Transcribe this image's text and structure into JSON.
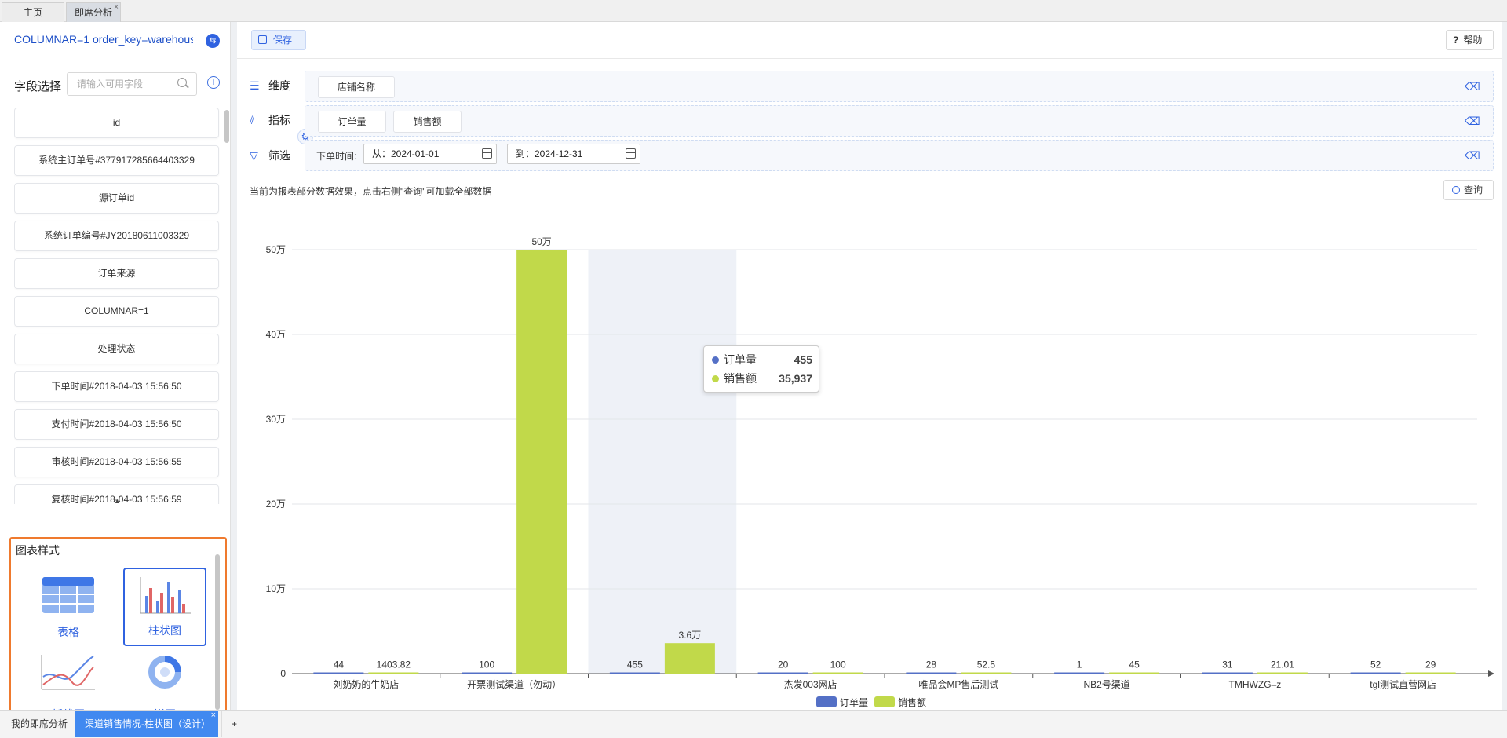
{
  "top_tabs": [
    {
      "label": "主页"
    },
    {
      "label": "即席分析",
      "close": "×"
    }
  ],
  "left": {
    "connection": "COLUMNAR=1 order_key=warehous",
    "switch_icon": "swap-icon",
    "field_select_label": "字段选择",
    "search_placeholder": "请输入可用字段",
    "fields": [
      "id",
      "系统主订单号#377917285664403329",
      "源订单id",
      "系统订单编号#JY20180611003329",
      "订单来源",
      "COLUMNAR=1",
      "处理状态",
      "下单时间#2018-04-03 15:56:50",
      "支付时间#2018-04-03 15:56:50",
      "审核时间#2018-04-03 15:56:55",
      "复核时间#2018-04-03 15:56:59"
    ],
    "chart_style": {
      "title": "图表样式",
      "items": [
        {
          "label": "表格",
          "icon": "table-icon"
        },
        {
          "label": "柱状图",
          "icon": "bar-chart-icon",
          "selected": true
        },
        {
          "label": "折线图",
          "icon": "line-chart-icon"
        },
        {
          "label": "饼图",
          "icon": "pie-chart-icon"
        }
      ]
    }
  },
  "toolbar": {
    "save": "保存",
    "help": "帮助"
  },
  "dimension": {
    "label": "维度",
    "chips": [
      "店铺名称"
    ]
  },
  "metric": {
    "label": "指标",
    "chips": [
      "订单量",
      "销售额"
    ]
  },
  "filter": {
    "label": "筛选",
    "field": "下单时间:",
    "from": "从：2024-01-01",
    "to": "到：2024-12-31"
  },
  "note": "当前为报表部分数据效果，点击右侧\"查询\"可加载全部数据",
  "query": "查询",
  "tooltip": {
    "rows": [
      {
        "name": "订单量",
        "value": "455"
      },
      {
        "name": "销售额",
        "value": "35,937"
      }
    ]
  },
  "bottom_tabs": [
    {
      "label": "我的即席分析"
    },
    {
      "label": "渠道销售情况-柱状图（设计）",
      "active": true,
      "close": "×"
    },
    {
      "label": "+"
    }
  ],
  "chart_data": {
    "type": "bar",
    "categories": [
      "刘奶奶的牛奶店",
      "开票测试渠道（勿动）",
      "",
      "杰发003网店",
      "唯品会MP售后测试",
      "NB2号渠道",
      "TMHWZG–z",
      "tgl测试直营网店"
    ],
    "series": [
      {
        "name": "订单量",
        "color": "#5470c6",
        "values": [
          44,
          100,
          455,
          20,
          28,
          1,
          31,
          52
        ],
        "labels": [
          "44",
          "100",
          "455",
          "20",
          "28",
          "1",
          "31",
          "52"
        ]
      },
      {
        "name": "销售额",
        "color": "#c1d94a",
        "values": [
          1403.82,
          500000,
          35937,
          100,
          52.5,
          45,
          21.01,
          29
        ],
        "labels": [
          "1403.82",
          "50万",
          "3.6万",
          "100",
          "52.5",
          "45",
          "21.01",
          "29"
        ]
      }
    ],
    "highlight_category": 2,
    "y_ticks": [
      "0",
      "10万",
      "20万",
      "30万",
      "40万",
      "50万"
    ],
    "ylim": [
      0,
      500000
    ],
    "grid": true,
    "legend": "bottom-center"
  }
}
